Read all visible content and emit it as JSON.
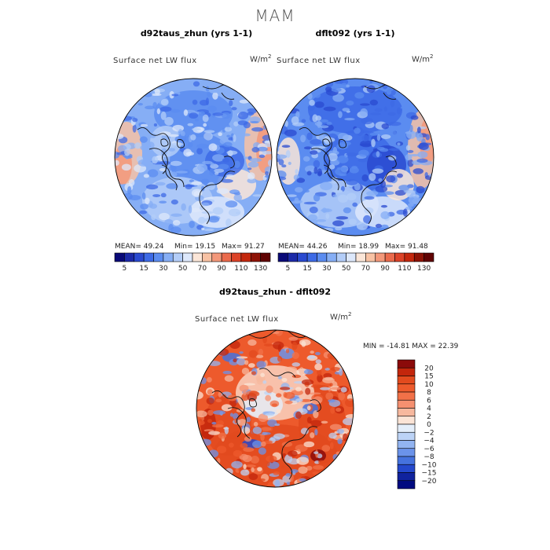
{
  "figure": {
    "season": "MAM",
    "diff_title": "d92taus_zhun - dflt092"
  },
  "panels": [
    {
      "case_title": "d92taus_zhun (yrs 1-1)",
      "variable": "Surface net LW flux",
      "units_base": "W/m",
      "units_exp": "2",
      "mean_text": "MEAN=  49.24",
      "min_text": "Min=  19.15",
      "max_text": "Max=  91.27"
    },
    {
      "case_title": "dflt092 (yrs 1-1)",
      "variable": "Surface net LW flux",
      "units_base": "W/m",
      "units_exp": "2",
      "mean_text": "MEAN=  44.26",
      "min_text": "Min=  18.99",
      "max_text": "Max=  91.48"
    }
  ],
  "diff_panel": {
    "variable": "Surface net LW flux",
    "units_base": "W/m",
    "units_exp": "2",
    "minmax_text": "MIN = -14.81 MAX =  22.39"
  },
  "chart_data": [
    {
      "type": "heatmap",
      "projection": "north polar stereographic",
      "title": "d92taus_zhun (yrs 1-1)",
      "variable": "Surface net LW flux",
      "units": "W/m2",
      "stats": {
        "mean": 49.24,
        "min": 19.15,
        "max": 91.27
      },
      "colorbar_levels": [
        5,
        10,
        15,
        20,
        25,
        30,
        40,
        50,
        60,
        70,
        80,
        90,
        100,
        110,
        120,
        130
      ],
      "colorbar_tick_labels": [
        "5",
        "15",
        "30",
        "50",
        "70",
        "90",
        "110",
        "130"
      ],
      "colorbar_colors": [
        "#0a0a78",
        "#1c2aa8",
        "#2a4ad0",
        "#3d6ae6",
        "#5b8cf0",
        "#86aef5",
        "#b3cdf8",
        "#dde8fb",
        "#fbe6d8",
        "#f8c2a4",
        "#f3987a",
        "#ea6a4c",
        "#dc4328",
        "#c4280e",
        "#8e1306",
        "#600303"
      ]
    },
    {
      "type": "heatmap",
      "projection": "north polar stereographic",
      "title": "dflt092 (yrs 1-1)",
      "variable": "Surface net LW flux",
      "units": "W/m2",
      "stats": {
        "mean": 44.26,
        "min": 18.99,
        "max": 91.48
      },
      "colorbar_levels": [
        5,
        10,
        15,
        20,
        25,
        30,
        40,
        50,
        60,
        70,
        80,
        90,
        100,
        110,
        120,
        130
      ],
      "colorbar_tick_labels": [
        "5",
        "15",
        "30",
        "50",
        "70",
        "90",
        "110",
        "130"
      ],
      "colorbar_colors": [
        "#0a0a78",
        "#1c2aa8",
        "#2a4ad0",
        "#3d6ae6",
        "#5b8cf0",
        "#86aef5",
        "#b3cdf8",
        "#dde8fb",
        "#fbe6d8",
        "#f8c2a4",
        "#f3987a",
        "#ea6a4c",
        "#dc4328",
        "#c4280e",
        "#8e1306",
        "#600303"
      ]
    },
    {
      "type": "heatmap",
      "projection": "north polar stereographic",
      "title": "d92taus_zhun - dflt092",
      "variable": "Surface net LW flux",
      "units": "W/m2",
      "stats": {
        "min": -14.81,
        "max": 22.39
      },
      "colorbar_tick_labels": [
        "20",
        "15",
        "10",
        "8",
        "6",
        "4",
        "2",
        "0",
        "−2",
        "−4",
        "−6",
        "−8",
        "−10",
        "−15",
        "−20"
      ],
      "colorbar_colors": [
        "#8b0a0a",
        "#c3260c",
        "#e24a1e",
        "#ed5a2c",
        "#f27148",
        "#f59070",
        "#f7b89e",
        "#fbe4d6",
        "#e4eefa",
        "#bcd3f6",
        "#92b4f1",
        "#6b93ea",
        "#4572de",
        "#2448cc",
        "#10239e",
        "#000a80"
      ]
    }
  ]
}
